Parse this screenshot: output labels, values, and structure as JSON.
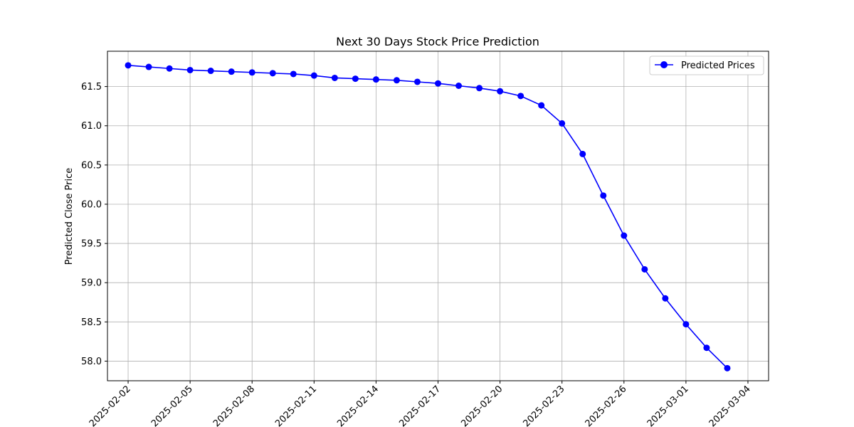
{
  "chart_data": {
    "type": "line",
    "title": "Next 30 Days Stock Price Prediction",
    "xlabel": "",
    "ylabel": "Predicted Close Price",
    "x_tick_labels": [
      "2025-02-02",
      "2025-02-05",
      "2025-02-08",
      "2025-02-11",
      "2025-02-14",
      "2025-02-17",
      "2025-02-20",
      "2025-02-23",
      "2025-02-26",
      "2025-03-01",
      "2025-03-04"
    ],
    "x_ticks": [
      "2025-02-02",
      "2025-02-05",
      "2025-02-08",
      "2025-02-11",
      "2025-02-14",
      "2025-02-17",
      "2025-02-20",
      "2025-02-23",
      "2025-02-26",
      "2025-03-01",
      "2025-03-04"
    ],
    "y_ticks": [
      58.0,
      58.5,
      59.0,
      59.5,
      60.0,
      60.5,
      61.0,
      61.5
    ],
    "xlim": [
      "2025-02-01",
      "2025-03-05"
    ],
    "ylim": [
      57.75,
      61.95
    ],
    "grid": true,
    "legend_position": "top-right",
    "series": [
      {
        "name": "Predicted Prices",
        "color": "#0000ff",
        "marker": "circle",
        "x": [
          "2025-02-02",
          "2025-02-03",
          "2025-02-04",
          "2025-02-05",
          "2025-02-06",
          "2025-02-07",
          "2025-02-08",
          "2025-02-09",
          "2025-02-10",
          "2025-02-11",
          "2025-02-12",
          "2025-02-13",
          "2025-02-14",
          "2025-02-15",
          "2025-02-16",
          "2025-02-17",
          "2025-02-18",
          "2025-02-19",
          "2025-02-20",
          "2025-02-21",
          "2025-02-22",
          "2025-02-23",
          "2025-02-24",
          "2025-02-25",
          "2025-02-26",
          "2025-02-27",
          "2025-02-28",
          "2025-03-01",
          "2025-03-02",
          "2025-03-03"
        ],
        "values": [
          61.77,
          61.75,
          61.73,
          61.71,
          61.7,
          61.69,
          61.68,
          61.67,
          61.66,
          61.64,
          61.61,
          61.6,
          61.59,
          61.58,
          61.56,
          61.54,
          61.51,
          61.48,
          61.44,
          61.38,
          61.26,
          61.03,
          60.64,
          60.11,
          59.6,
          59.17,
          58.8,
          58.47,
          58.17,
          57.91
        ]
      }
    ]
  }
}
